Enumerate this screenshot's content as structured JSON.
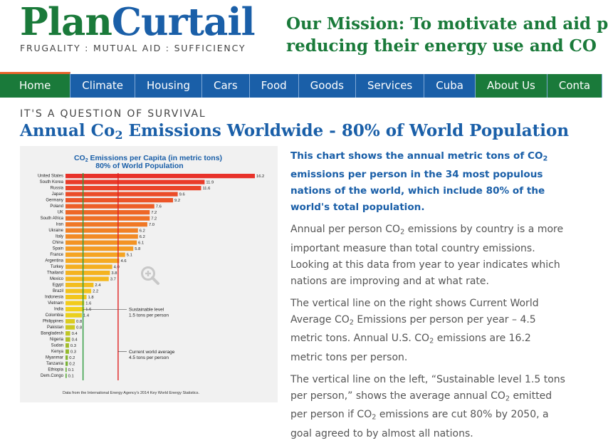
{
  "header": {
    "logo_plan": "Plan",
    "logo_curtail": "Curtail",
    "tagline": "FRUGALITY : MUTUAL AID : SUFFICIENCY",
    "mission_line1": "Our Mission: To motivate and aid p",
    "mission_line2": "reducing their energy use and CO"
  },
  "nav": {
    "items": [
      "Home",
      "Climate",
      "Housing",
      "Cars",
      "Food",
      "Goods",
      "Services",
      "Cuba",
      "About Us",
      "Conta"
    ]
  },
  "page": {
    "section_label": "IT'S A QUESTION OF SURVIVAL",
    "title_a": "Annual Co",
    "title_sub": "2",
    "title_b": " Emissions Worldwide - 80% of World Population"
  },
  "text": {
    "intro_a": "This chart shows the annual metric tons of CO",
    "intro_b": " emissions per person in the 34 most populous nations of the world, which include 80% of the world's total population.",
    "p1_a": "Annual per person CO",
    "p1_b": " emissions by country is a more important measure than total country emissions. Looking at this data from year to year indicates which nations are improving and at what rate.",
    "p2_a": "The vertical line on the right shows Current World Average CO",
    "p2_b": " Emissions per person per year – 4.5 metric tons. Annual U.S. CO",
    "p2_c": " emissions are 16.2 metric tons per person.",
    "p3_a": "The vertical line on the left, “Sustainable level 1.5 tons per person,” shows the average annual CO",
    "p3_b": " emitted per person if CO",
    "p3_c": " emissions are cut 80% by 2050, a goal agreed to by almost all nations.",
    "sub2": "2"
  },
  "chart_data": {
    "type": "bar",
    "orientation": "horizontal",
    "title_a": "CO",
    "title_sub": "2",
    "title_b": " Emissions per Capita (in metric tons)",
    "subtitle": "80% of World Population",
    "categories": [
      "United States",
      "South Korea",
      "Russia",
      "Japan",
      "Germany",
      "Poland",
      "UK",
      "South Africa",
      "Iran",
      "Ukraine",
      "Italy",
      "China",
      "Spain",
      "France",
      "Argentina",
      "Turkey",
      "Thailand",
      "Mexico",
      "Egypt",
      "Brazil",
      "Indonesia",
      "Vietnam",
      "India",
      "Colombia",
      "Philippines",
      "Pakistan",
      "Bangladesh",
      "Nigeria",
      "Sudan",
      "Kenya",
      "Myanmar",
      "Tanzania",
      "Ethiopia",
      "Dem.Congo"
    ],
    "values": [
      16.2,
      11.9,
      11.6,
      9.6,
      9.2,
      7.6,
      7.2,
      7.2,
      7.0,
      6.2,
      6.2,
      6.1,
      5.8,
      5.1,
      4.6,
      4.0,
      3.8,
      3.7,
      2.4,
      2.2,
      1.8,
      1.6,
      1.6,
      1.4,
      0.8,
      0.8,
      0.4,
      0.4,
      0.3,
      0.3,
      0.2,
      0.2,
      0.1,
      0.1
    ],
    "value_labels": [
      "16.2",
      "11.9",
      "11.6",
      "9.6",
      "9.2",
      "7.6",
      "7.2",
      "7.2",
      "7.0",
      "6.2",
      "6.2",
      "6.1",
      "5.8",
      "5.1",
      "4.6",
      "4.0",
      "3.8",
      "3.7",
      "2.4",
      "2.2",
      "1.8",
      "1.6",
      "1.6",
      "1.4",
      "0.8",
      "0.8",
      "0.4",
      "0.4",
      "0.3",
      "0.3",
      "0.2",
      "0.2",
      "0.1",
      "0.1"
    ],
    "xlim": [
      0,
      16.2
    ],
    "reference_lines": [
      {
        "value": 1.5,
        "label_line1": "Sustainable level",
        "label_line2": "1.5 tons per person",
        "color": "#2a9a3a"
      },
      {
        "value": 4.5,
        "label_line1": "Current world average",
        "label_line2": "4.5 tons per person",
        "color": "#e02020"
      }
    ],
    "source": "Data from the International Energy Agency's 2014 Key World Energy Statistics.",
    "colors": {
      "high": "#e8322a",
      "mid": "#f5a623",
      "yellow": "#f2d21a",
      "low": "#5aab3a",
      "title": "#1a5fa8"
    }
  }
}
